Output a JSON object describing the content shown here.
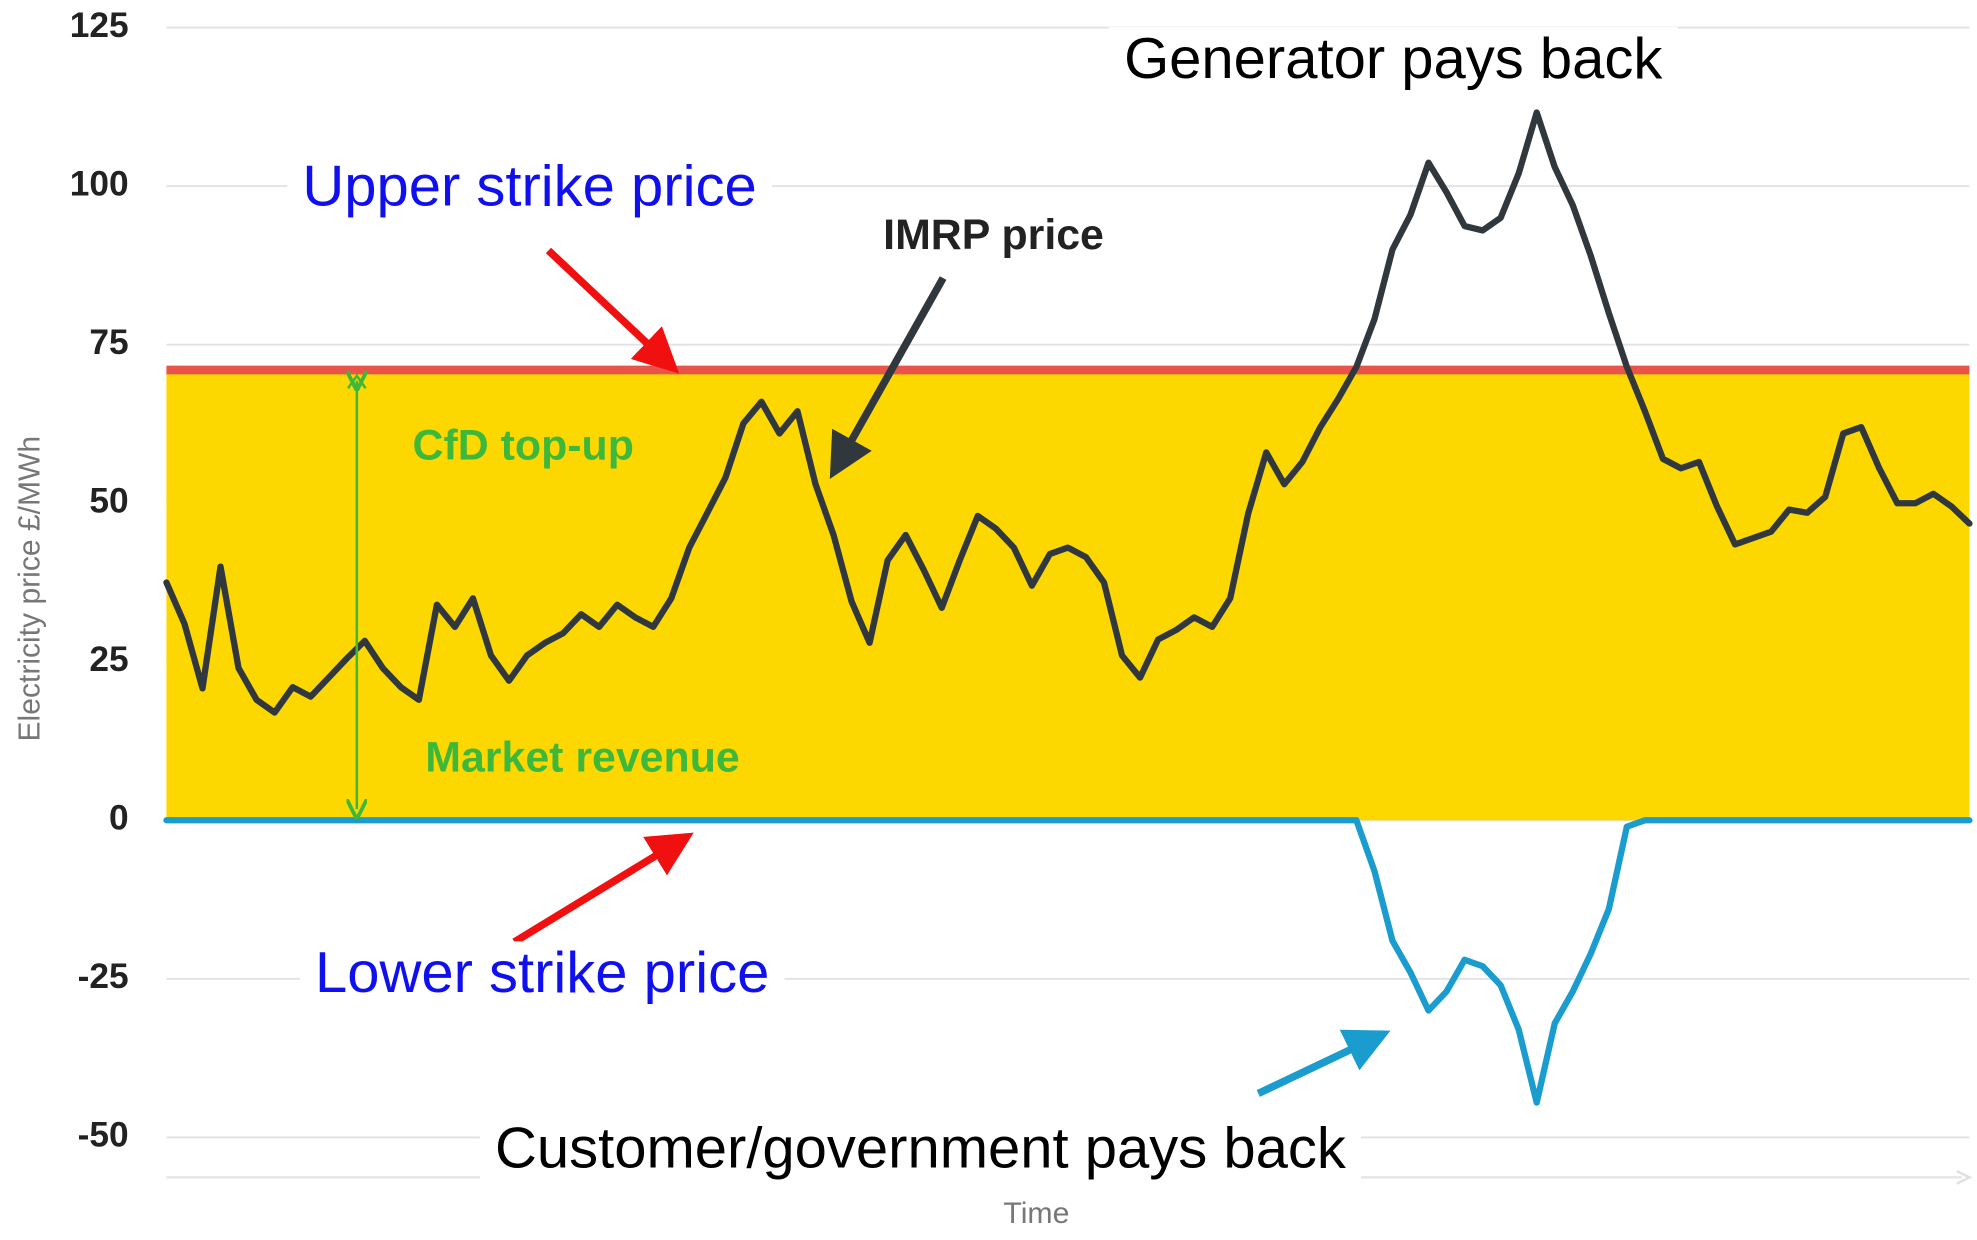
{
  "chart_data": {
    "type": "line",
    "y_label": "Electricity price £/MWh",
    "x_label": "Time",
    "ylim": [
      -56.3,
      125
    ],
    "yticks": [
      -50,
      -25,
      0,
      25,
      50,
      75,
      100,
      125
    ],
    "grid": true,
    "band": {
      "from": 0,
      "to": 71,
      "color": "#fcd800"
    },
    "upper_strike": {
      "value": 71,
      "color": "#e8544a"
    },
    "series": [
      {
        "color": "#30373d",
        "values": [
          37.5,
          31,
          20.8,
          40,
          24,
          19,
          17,
          21,
          19.5,
          22.5,
          25.5,
          28.3,
          24,
          21,
          19,
          34,
          30.5,
          35,
          26,
          22,
          26,
          28,
          29.5,
          32.5,
          30.5,
          34,
          32,
          30.5,
          35,
          43,
          48.5,
          54,
          62.6,
          66,
          61,
          64.5,
          53,
          45,
          34.5,
          28,
          41,
          45,
          39.5,
          33.5,
          41,
          48,
          46,
          43,
          37,
          42,
          43,
          41.5,
          37.5,
          26,
          22.5,
          28.5,
          30,
          32,
          30.5,
          35,
          48.4,
          58,
          53,
          56.5,
          62,
          66.5,
          71.5,
          79,
          90,
          95.5,
          103.7,
          99,
          93.7,
          93,
          95,
          102,
          111.6,
          103,
          97,
          89,
          80,
          71.5,
          64.5,
          57,
          55.5,
          56.5,
          49.5,
          43.5,
          44.5,
          45.5,
          49,
          48.5,
          51,
          61,
          62,
          55.5,
          50,
          50,
          51.5,
          49.5,
          46.8
        ]
      },
      {
        "color": "#1b9ccf",
        "values": [
          0,
          0,
          0,
          0,
          0,
          0,
          0,
          0,
          0,
          0,
          0,
          0,
          0,
          0,
          0,
          0,
          0,
          0,
          0,
          0,
          0,
          0,
          0,
          0,
          0,
          0,
          0,
          0,
          0,
          0,
          0,
          0,
          0,
          0,
          0,
          0,
          0,
          0,
          0,
          0,
          0,
          0,
          0,
          0,
          0,
          0,
          0,
          0,
          0,
          0,
          0,
          0,
          0,
          0,
          0,
          0,
          0,
          0,
          0,
          0,
          0,
          0,
          0,
          0,
          0,
          0,
          0,
          -8,
          -19,
          -24,
          -30,
          -27,
          -22,
          -23,
          -26,
          -33,
          -44.5,
          -32,
          -27,
          -21,
          -14,
          -1,
          0,
          0,
          0,
          0,
          0,
          0,
          0,
          0,
          0,
          0,
          0,
          0,
          0,
          0,
          0,
          0,
          0,
          0,
          0
        ]
      }
    ],
    "annotations": [
      {
        "text": "Generator pays back",
        "color": "#000000"
      },
      {
        "text": "Upper strike price",
        "color": "#1010ee"
      },
      {
        "text": "IMRP price",
        "color": "#222222"
      },
      {
        "text": "CfD top-up",
        "color": "#3db83a"
      },
      {
        "text": "Market revenue",
        "color": "#3db83a"
      },
      {
        "text": "Lower strike price",
        "color": "#1010ee"
      },
      {
        "text": "Customer/government pays back",
        "color": "#000000"
      }
    ]
  }
}
